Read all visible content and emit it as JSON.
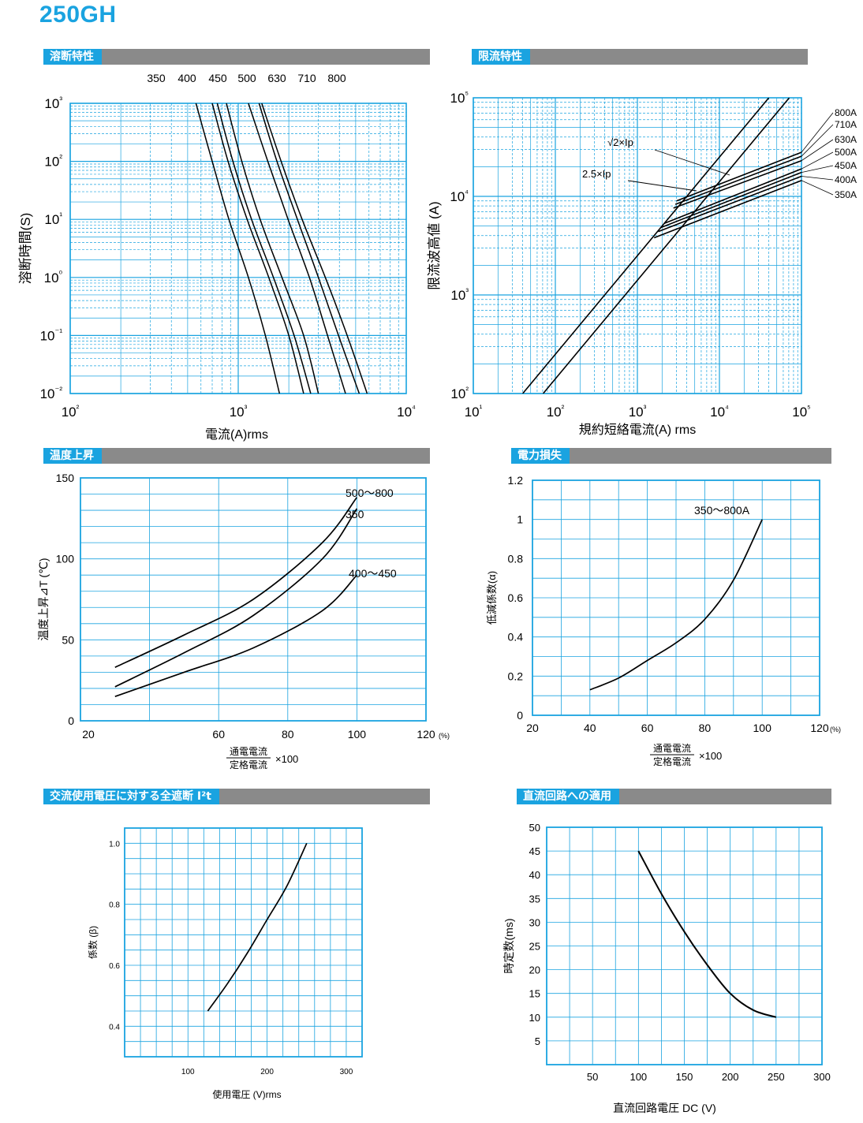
{
  "page_title": "250GH",
  "sections": {
    "s1": "溶断特性",
    "s2": "限流特性",
    "s3": "温度上昇",
    "s4": "電力損失",
    "s5": "交流使用電圧に対する全遮断 I²t",
    "s6": "直流回路への適用"
  },
  "colors": {
    "accent": "#1aa3e0",
    "bar": "#8a8a8a",
    "grid": "#1aa3e0"
  },
  "chart_data": [
    {
      "id": "fusing",
      "type": "line",
      "title": "溶断特性",
      "xlabel": "電流(A)rms",
      "ylabel": "溶断時間(S)",
      "x_scale": "log",
      "y_scale": "log",
      "xlim": [
        100,
        10000
      ],
      "ylim": [
        0.01,
        1000
      ],
      "x_ticks": [
        "10²",
        "10³",
        "10⁴"
      ],
      "y_ticks": [
        "10⁻²",
        "10⁻¹",
        "10⁰",
        "10¹",
        "10²",
        "10³"
      ],
      "grid": true,
      "series_labels_top": [
        "350",
        "400",
        "450",
        "500",
        "630",
        "710",
        "800"
      ],
      "series": [
        {
          "name": "350",
          "points": [
            [
              560,
              1000
            ],
            [
              700,
              100
            ],
            [
              880,
              10
            ],
            [
              1150,
              1
            ],
            [
              1450,
              0.1
            ],
            [
              1760,
              0.01
            ]
          ]
        },
        {
          "name": "400",
          "points": [
            [
              700,
              1000
            ],
            [
              870,
              100
            ],
            [
              1130,
              10
            ],
            [
              1520,
              1
            ],
            [
              2000,
              0.1
            ],
            [
              2450,
              0.01
            ]
          ]
        },
        {
          "name": "450",
          "points": [
            [
              750,
              1000
            ],
            [
              930,
              100
            ],
            [
              1200,
              10
            ],
            [
              1620,
              1
            ],
            [
              2150,
              0.1
            ],
            [
              2700,
              0.01
            ]
          ]
        },
        {
          "name": "500",
          "points": [
            [
              850,
              1000
            ],
            [
              1050,
              100
            ],
            [
              1350,
              10
            ],
            [
              1820,
              1
            ],
            [
              2450,
              0.1
            ],
            [
              3000,
              0.01
            ]
          ]
        },
        {
          "name": "630",
          "points": [
            [
              1150,
              1000
            ],
            [
              1500,
              100
            ],
            [
              1980,
              10
            ],
            [
              2650,
              1
            ],
            [
              3400,
              0.1
            ],
            [
              4350,
              0.01
            ]
          ]
        },
        {
          "name": "710",
          "points": [
            [
              1330,
              1000
            ],
            [
              1700,
              100
            ],
            [
              2250,
              10
            ],
            [
              3000,
              1
            ],
            [
              3950,
              0.1
            ],
            [
              5250,
              0.01
            ]
          ]
        },
        {
          "name": "800",
          "points": [
            [
              1380,
              1000
            ],
            [
              1800,
              100
            ],
            [
              2400,
              10
            ],
            [
              3300,
              1
            ],
            [
              4450,
              0.1
            ],
            [
              5850,
              0.01
            ]
          ]
        }
      ]
    },
    {
      "id": "limiting",
      "type": "line",
      "title": "限流特性",
      "xlabel": "規約短絡電流(A) rms",
      "ylabel": "限流波高値 (A)",
      "x_scale": "log",
      "y_scale": "log",
      "xlim": [
        10,
        100000
      ],
      "ylim": [
        100,
        100000
      ],
      "x_ticks": [
        "10¹",
        "10²",
        "10³",
        "10⁴",
        "10⁵"
      ],
      "y_ticks": [
        "10²",
        "10³",
        "10⁴",
        "10⁵"
      ],
      "grid": true,
      "annotations": [
        "√2×Ip",
        "2.5×Ip"
      ],
      "ref_lines": [
        {
          "name": "2.5×Ip",
          "points": [
            [
              40,
              100
            ],
            [
              40000,
              100000
            ]
          ]
        },
        {
          "name": "√2×Ip",
          "points": [
            [
              71,
              100
            ],
            [
              71000,
              100000
            ]
          ]
        }
      ],
      "series": [
        {
          "name": "800A",
          "points": [
            [
              3000,
              9000
            ],
            [
              100000,
              28000
            ]
          ]
        },
        {
          "name": "710A",
          "points": [
            [
              2900,
              8300
            ],
            [
              100000,
              25500
            ]
          ]
        },
        {
          "name": "630A",
          "points": [
            [
              2750,
              7600
            ],
            [
              100000,
              23000
            ]
          ]
        },
        {
          "name": "500A",
          "points": [
            [
              2100,
              5300
            ],
            [
              100000,
              19000
            ]
          ]
        },
        {
          "name": "450A",
          "points": [
            [
              1900,
              4800
            ],
            [
              100000,
              17500
            ]
          ]
        },
        {
          "name": "400A",
          "points": [
            [
              1800,
              4400
            ],
            [
              100000,
              16000
            ]
          ]
        },
        {
          "name": "350A",
          "points": [
            [
              1600,
              3800
            ],
            [
              100000,
              14500
            ]
          ]
        }
      ]
    },
    {
      "id": "temp",
      "type": "line",
      "title": "温度上昇",
      "xlabel_num": "通電電流",
      "xlabel_den": "定格電流",
      "xlabel_mul": "×100",
      "x_unit": "(%)",
      "ylabel": "温度上昇⊿T (℃)",
      "xlim": [
        20,
        120
      ],
      "ylim": [
        0,
        150
      ],
      "x_ticks": [
        20,
        60,
        80,
        100,
        120
      ],
      "y_ticks": [
        0,
        50,
        100,
        150
      ],
      "grid": true,
      "series": [
        {
          "name": "500～800",
          "points": [
            [
              30,
              33
            ],
            [
              50,
              53
            ],
            [
              70,
              75
            ],
            [
              90,
              110
            ],
            [
              100,
              138
            ]
          ]
        },
        {
          "name": "350",
          "points": [
            [
              30,
              21
            ],
            [
              50,
              42
            ],
            [
              70,
              65
            ],
            [
              90,
              100
            ],
            [
              100,
              131
            ]
          ]
        },
        {
          "name": "400～450",
          "points": [
            [
              30,
              15
            ],
            [
              50,
              30
            ],
            [
              70,
              45
            ],
            [
              90,
              68
            ],
            [
              100,
              90
            ]
          ]
        }
      ]
    },
    {
      "id": "power",
      "type": "line",
      "title": "電力損失",
      "xlabel_num": "通電電流",
      "xlabel_den": "定格電流",
      "xlabel_mul": "×100",
      "x_unit": "(%)",
      "ylabel": "低減係数(α)",
      "xlim": [
        20,
        120
      ],
      "ylim": [
        0,
        1.2
      ],
      "x_ticks": [
        20,
        40,
        60,
        80,
        100,
        120
      ],
      "y_ticks": [
        "0",
        "0.2",
        "0.4",
        "0.6",
        "0.8",
        "1",
        "1.2"
      ],
      "grid": true,
      "series": [
        {
          "name": "350～800A",
          "points": [
            [
              40,
              0.13
            ],
            [
              50,
              0.19
            ],
            [
              60,
              0.28
            ],
            [
              70,
              0.37
            ],
            [
              80,
              0.49
            ],
            [
              90,
              0.69
            ],
            [
              100,
              1.0
            ]
          ]
        }
      ]
    },
    {
      "id": "i2t",
      "type": "line",
      "title": "交流使用電圧に対する全遮断 I²t",
      "xlabel": "使用電圧 (V)rms",
      "ylabel": "係数 (β)",
      "xlim": [
        20,
        320
      ],
      "ylim": [
        0.3,
        1.05
      ],
      "x_ticks": [
        100,
        200,
        300
      ],
      "y_ticks": [
        "0.4",
        "0.6",
        "0.8",
        "1.0"
      ],
      "grid": true,
      "series": [
        {
          "name": "β",
          "points": [
            [
              125,
              0.45
            ],
            [
              150,
              0.54
            ],
            [
              175,
              0.64
            ],
            [
              200,
              0.75
            ],
            [
              225,
              0.86
            ],
            [
              250,
              1.0
            ]
          ]
        }
      ]
    },
    {
      "id": "dc",
      "type": "line",
      "title": "直流回路への適用",
      "xlabel": "直流回路電圧 DC (V)",
      "ylabel": "時定数(ms)",
      "xlim": [
        0,
        300
      ],
      "ylim": [
        0,
        50
      ],
      "x_ticks": [
        50,
        100,
        150,
        200,
        250,
        300
      ],
      "y_ticks": [
        5,
        10,
        15,
        20,
        25,
        30,
        35,
        40,
        45,
        50
      ],
      "grid": true,
      "series": [
        {
          "name": "DC",
          "points": [
            [
              100,
              45
            ],
            [
              125,
              36
            ],
            [
              150,
              28
            ],
            [
              175,
              21
            ],
            [
              200,
              15
            ],
            [
              225,
              11.5
            ],
            [
              250,
              10
            ]
          ]
        }
      ]
    }
  ]
}
